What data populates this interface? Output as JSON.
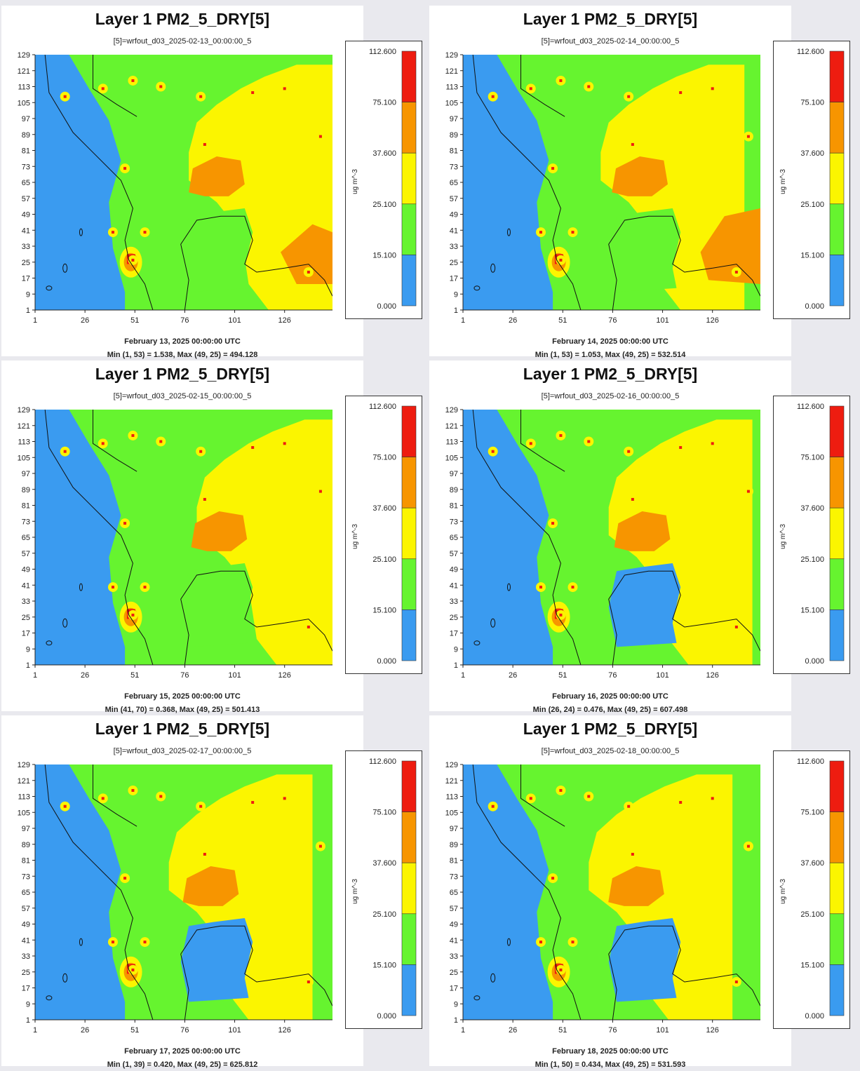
{
  "colors": {
    "c0": "#3a9bf0",
    "c1": "#66f42f",
    "c2": "#fbf500",
    "c3": "#f79500",
    "c4": "#ee1c10"
  },
  "chart_data": [
    {
      "type": "heatmap",
      "title": "Layer 1 PM2_5_DRY[5]",
      "subtitle": "[5]=wrfout_d03_2025-02-13_00:00:00_5",
      "date": "February 13, 2025 00:00:00 UTC",
      "minmax": "Min (1, 53) = 1.538, Max (49, 25) = 494.128",
      "yticks": [
        "129",
        "121",
        "113",
        "105",
        "97",
        "89",
        "81",
        "73",
        "65",
        "57",
        "49",
        "41",
        "33",
        "25",
        "17",
        "9",
        "1"
      ],
      "xticks": [
        "1",
        "26",
        "51",
        "76",
        "101",
        "126"
      ],
      "legend": {
        "unit": "ug m^-3",
        "breaks": [
          "112.600",
          "75.100",
          "37.600",
          "25.100",
          "15.100",
          "0.000"
        ]
      }
    },
    {
      "type": "heatmap",
      "title": "Layer 1 PM2_5_DRY[5]",
      "subtitle": "[5]=wrfout_d03_2025-02-14_00:00:00_5",
      "date": "February 14, 2025 00:00:00 UTC",
      "minmax": "Min (1, 53) = 1.053, Max (49, 25) = 532.514",
      "yticks": [
        "129",
        "121",
        "113",
        "105",
        "97",
        "89",
        "81",
        "73",
        "65",
        "57",
        "49",
        "41",
        "33",
        "25",
        "17",
        "9",
        "1"
      ],
      "xticks": [
        "1",
        "26",
        "51",
        "76",
        "101",
        "126"
      ],
      "legend": {
        "unit": "ug m^-3",
        "breaks": [
          "112.600",
          "75.100",
          "37.600",
          "25.100",
          "15.100",
          "0.000"
        ]
      }
    },
    {
      "type": "heatmap",
      "title": "Layer 1 PM2_5_DRY[5]",
      "subtitle": "[5]=wrfout_d03_2025-02-15_00:00:00_5",
      "date": "February 15, 2025 00:00:00 UTC",
      "minmax": "Min (41, 70) = 0.368, Max (49, 25) = 501.413",
      "yticks": [
        "129",
        "121",
        "113",
        "105",
        "97",
        "89",
        "81",
        "73",
        "65",
        "57",
        "49",
        "41",
        "33",
        "25",
        "17",
        "9",
        "1"
      ],
      "xticks": [
        "1",
        "26",
        "51",
        "76",
        "101",
        "126"
      ],
      "legend": {
        "unit": "ug m^-3",
        "breaks": [
          "112.600",
          "75.100",
          "37.600",
          "25.100",
          "15.100",
          "0.000"
        ]
      }
    },
    {
      "type": "heatmap",
      "title": "Layer 1 PM2_5_DRY[5]",
      "subtitle": "[5]=wrfout_d03_2025-02-16_00:00:00_5",
      "date": "February 16, 2025 00:00:00 UTC",
      "minmax": "Min (26, 24) = 0.476, Max (49, 25) = 607.498",
      "yticks": [
        "129",
        "121",
        "113",
        "105",
        "97",
        "89",
        "81",
        "73",
        "65",
        "57",
        "49",
        "41",
        "33",
        "25",
        "17",
        "9",
        "1"
      ],
      "xticks": [
        "1",
        "26",
        "51",
        "76",
        "101",
        "126"
      ],
      "legend": {
        "unit": "ug m^-3",
        "breaks": [
          "112.600",
          "75.100",
          "37.600",
          "25.100",
          "15.100",
          "0.000"
        ]
      }
    },
    {
      "type": "heatmap",
      "title": "Layer 1 PM2_5_DRY[5]",
      "subtitle": "[5]=wrfout_d03_2025-02-17_00:00:00_5",
      "date": "February 17, 2025 00:00:00 UTC",
      "minmax": "Min (1, 39) = 0.420, Max (49, 25) = 625.812",
      "yticks": [
        "129",
        "121",
        "113",
        "105",
        "97",
        "89",
        "81",
        "73",
        "65",
        "57",
        "49",
        "41",
        "33",
        "25",
        "17",
        "9",
        "1"
      ],
      "xticks": [
        "1",
        "26",
        "51",
        "76",
        "101",
        "126"
      ],
      "legend": {
        "unit": "ug m^-3",
        "breaks": [
          "112.600",
          "75.100",
          "37.600",
          "25.100",
          "15.100",
          "0.000"
        ]
      }
    },
    {
      "type": "heatmap",
      "title": "Layer 1 PM2_5_DRY[5]",
      "subtitle": "[5]=wrfout_d03_2025-02-18_00:00:00_5",
      "date": "February 18, 2025 00:00:00 UTC",
      "minmax": "Min (1, 50) = 0.434, Max (49, 25) = 531.593",
      "yticks": [
        "129",
        "121",
        "113",
        "105",
        "97",
        "89",
        "81",
        "73",
        "65",
        "57",
        "49",
        "41",
        "33",
        "25",
        "17",
        "9",
        "1"
      ],
      "xticks": [
        "1",
        "26",
        "51",
        "76",
        "101",
        "126"
      ],
      "legend": {
        "unit": "ug m^-3",
        "breaks": [
          "112.600",
          "75.100",
          "37.600",
          "25.100",
          "15.100",
          "0.000"
        ]
      }
    }
  ]
}
